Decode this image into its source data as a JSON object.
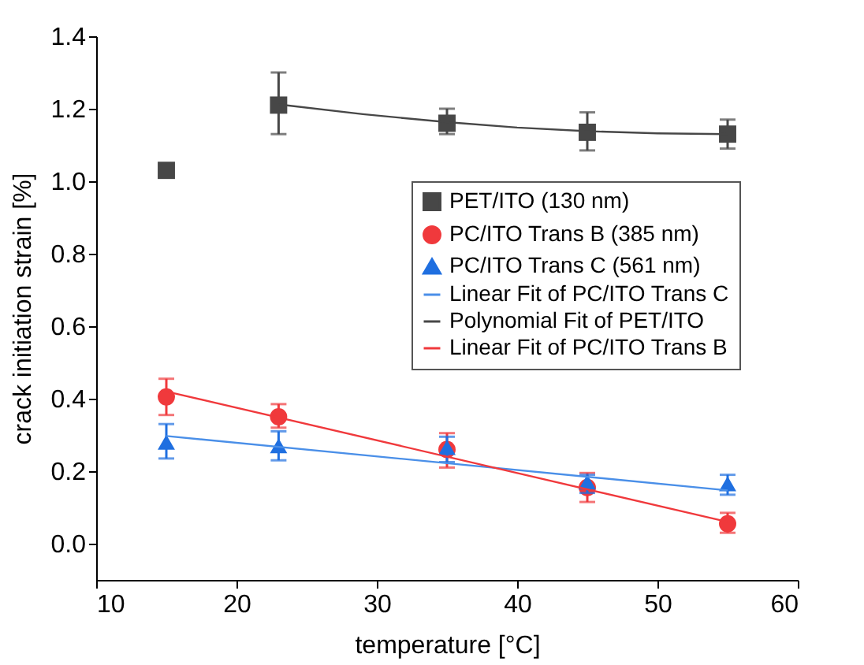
{
  "chart_data": {
    "type": "scatter",
    "xlabel": "temperature [°C]",
    "ylabel": "crack initiation strain [%]",
    "xlim": [
      10,
      60
    ],
    "xticks": [
      10,
      20,
      30,
      40,
      50,
      60
    ],
    "ylim": [
      -0.1,
      1.4
    ],
    "yticks": [
      {
        "value": 0,
        "label": "0.0"
      },
      0.2,
      0.4,
      0.6,
      0.8,
      {
        "value": 1,
        "label": "1.0"
      },
      1.2,
      1.4
    ],
    "grid": false,
    "legend": "right",
    "series": [
      {
        "name": "PET/ITO (130 nm)",
        "marker": "square",
        "color": "#474747",
        "x": [
          15,
          23,
          35,
          45,
          55
        ],
        "values": [
          1.03,
          1.21,
          1.16,
          1.135,
          1.13
        ],
        "errors": [
          null,
          [
            1.13,
            1.3
          ],
          [
            1.13,
            1.2
          ],
          [
            1.085,
            1.19
          ],
          [
            1.09,
            1.17
          ]
        ]
      },
      {
        "name": "PC/ITO Trans B (385 nm)",
        "marker": "circle",
        "color": "#f0393c",
        "x": [
          15,
          23,
          35,
          45,
          55
        ],
        "values": [
          0.405,
          0.35,
          0.26,
          0.155,
          0.055
        ],
        "errors": [
          [
            0.355,
            0.455
          ],
          [
            0.32,
            0.385
          ],
          [
            0.21,
            0.305
          ],
          [
            0.115,
            0.195
          ],
          [
            0.03,
            0.085
          ]
        ]
      },
      {
        "name": "PC/ITO Trans C (561 nm)",
        "marker": "triangle",
        "color": "#1f6fe0",
        "x": [
          15,
          23,
          35,
          45,
          55
        ],
        "values": [
          0.28,
          0.27,
          0.265,
          0.17,
          0.165
        ],
        "errors": [
          [
            0.235,
            0.33
          ],
          [
            0.23,
            0.31
          ],
          [
            0.225,
            0.295
          ],
          [
            0.14,
            0.19
          ],
          [
            0.135,
            0.19
          ]
        ]
      },
      {
        "name": "Linear Fit of PC/ITO Trans C",
        "type": "line",
        "marker": "none",
        "color": "#4a8fe8",
        "x": [
          15,
          55
        ],
        "values": [
          0.297,
          0.147
        ]
      },
      {
        "name": "Polynomial Fit of PET/ITO",
        "type": "line",
        "marker": "none",
        "color": "#474747",
        "x": [
          23,
          29,
          35,
          40,
          45,
          50,
          55
        ],
        "values": [
          1.212,
          1.185,
          1.163,
          1.148,
          1.138,
          1.132,
          1.13
        ]
      },
      {
        "name": "Linear Fit of PC/ITO Trans B",
        "type": "line",
        "marker": "none",
        "color": "#f0393c",
        "x": [
          15,
          55
        ],
        "values": [
          0.42,
          0.06
        ]
      }
    ]
  }
}
